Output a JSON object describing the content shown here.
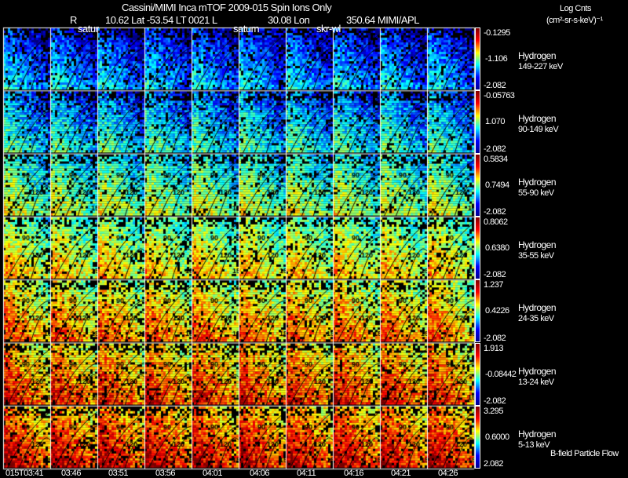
{
  "header": {
    "title": "Cassini/MIMI Inca mTOF  2009-015   Spin   Ions Only",
    "r_label": "R",
    "orbit_info": "10.62 Lat -53.54 LT 0021 L",
    "lon_info": "30.08 Lon",
    "lon_value": "350.64  MIMI/APL",
    "units_title": "Log Cnts",
    "units": "(cm²-sr-s-keV)⁻¹"
  },
  "markers": [
    "satur",
    "saturn",
    "skr-wl"
  ],
  "chart_data": {
    "type": "heatmap",
    "title": "Cassini/MIMI Inca mTOF 2009-015 Spin Ions Only",
    "x_times": [
      "015T03:41",
      "03:46",
      "03:51",
      "03:56",
      "04:01",
      "04:06",
      "04:11",
      "04:16",
      "04:21",
      "04:26"
    ],
    "pitch_angle_contours": [
      "60",
      "90",
      "120",
      "150"
    ],
    "rows": [
      {
        "species": "Hydrogen",
        "energy": "149-227 keV",
        "max": "-0.1295",
        "mid": "-1.106",
        "min": "-2.082"
      },
      {
        "species": "Hydrogen",
        "energy": "90-149 keV",
        "max": "-0.05763",
        "mid": "1.070",
        "min": "-2.082"
      },
      {
        "species": "Hydrogen",
        "energy": "55-90 keV",
        "max": "0.5834",
        "mid": "0.7494",
        "min": "-2.082"
      },
      {
        "species": "Hydrogen",
        "energy": "35-55 keV",
        "max": "0.8062",
        "mid": "0.6380",
        "min": "-2.082"
      },
      {
        "species": "Hydrogen",
        "energy": "24-35 keV",
        "max": "1.237",
        "mid": "0.4226",
        "min": "-2.082"
      },
      {
        "species": "Hydrogen",
        "energy": "13-24 keV",
        "max": "1.913",
        "mid": "-0.08442",
        "min": "-2.082"
      },
      {
        "species": "Hydrogen",
        "energy": "5-13 keV",
        "max": "3.295",
        "mid": "0.6000",
        "min": "2.082"
      }
    ],
    "colormap": "jet"
  },
  "footer_note": "B-field Particle Flow"
}
